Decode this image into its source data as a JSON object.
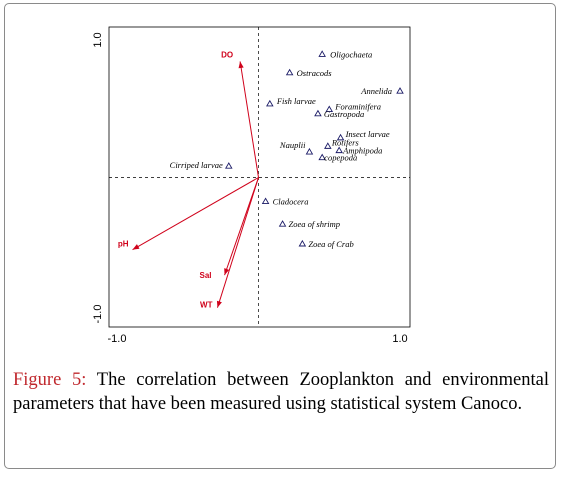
{
  "chart_data": {
    "type": "scatter",
    "title": "",
    "xlabel": "",
    "ylabel": "",
    "xlim": [
      -1.0,
      1.0
    ],
    "ylim": [
      -1.0,
      1.0
    ],
    "x_ticks": [
      "-1.0",
      "1.0"
    ],
    "y_ticks": [
      "1.0",
      "-1.0"
    ],
    "grid": false,
    "reference_lines": "dashed lines at x=0 and y=0",
    "series": [
      {
        "marker": "triangle",
        "color": "#1a1a66",
        "points": [
          {
            "label": "Oligochaeta",
            "x": 0.45,
            "y": 0.87
          },
          {
            "label": "Ostracods",
            "x": 0.22,
            "y": 0.74
          },
          {
            "label": "Annelida",
            "x": 1.0,
            "y": 0.61
          },
          {
            "label": "Fish larvae",
            "x": 0.08,
            "y": 0.52
          },
          {
            "label": "Foraminifera",
            "x": 0.5,
            "y": 0.48
          },
          {
            "label": "Gastropoda",
            "x": 0.42,
            "y": 0.45
          },
          {
            "label": "Insect larvae",
            "x": 0.58,
            "y": 0.28
          },
          {
            "label": "Rotifers",
            "x": 0.49,
            "y": 0.22
          },
          {
            "label": "Nauplii",
            "x": 0.36,
            "y": 0.18
          },
          {
            "label": "Amphipoda",
            "x": 0.57,
            "y": 0.19
          },
          {
            "label": "copepoda",
            "x": 0.45,
            "y": 0.14
          },
          {
            "label": "Cirriped larvae",
            "x": -0.21,
            "y": 0.08
          },
          {
            "label": "Cladocera",
            "x": 0.05,
            "y": -0.17
          },
          {
            "label": "Zoea of shrimp",
            "x": 0.17,
            "y": -0.33
          },
          {
            "label": "Zoea of Crab",
            "x": 0.31,
            "y": -0.47
          }
        ]
      }
    ],
    "vectors": {
      "color": "#d0021b",
      "items": [
        {
          "label": "DO",
          "x": -0.13,
          "y": 0.82
        },
        {
          "label": "pH",
          "x": -0.89,
          "y": -0.51
        },
        {
          "label": "Sal",
          "x": -0.24,
          "y": -0.69
        },
        {
          "label": "WT",
          "x": -0.29,
          "y": -0.92
        }
      ]
    }
  },
  "caption": {
    "label": "Figure 5:",
    "text": " The correlation between Zooplankton and environmental parameters that have been measured using statistical system Canoco."
  }
}
